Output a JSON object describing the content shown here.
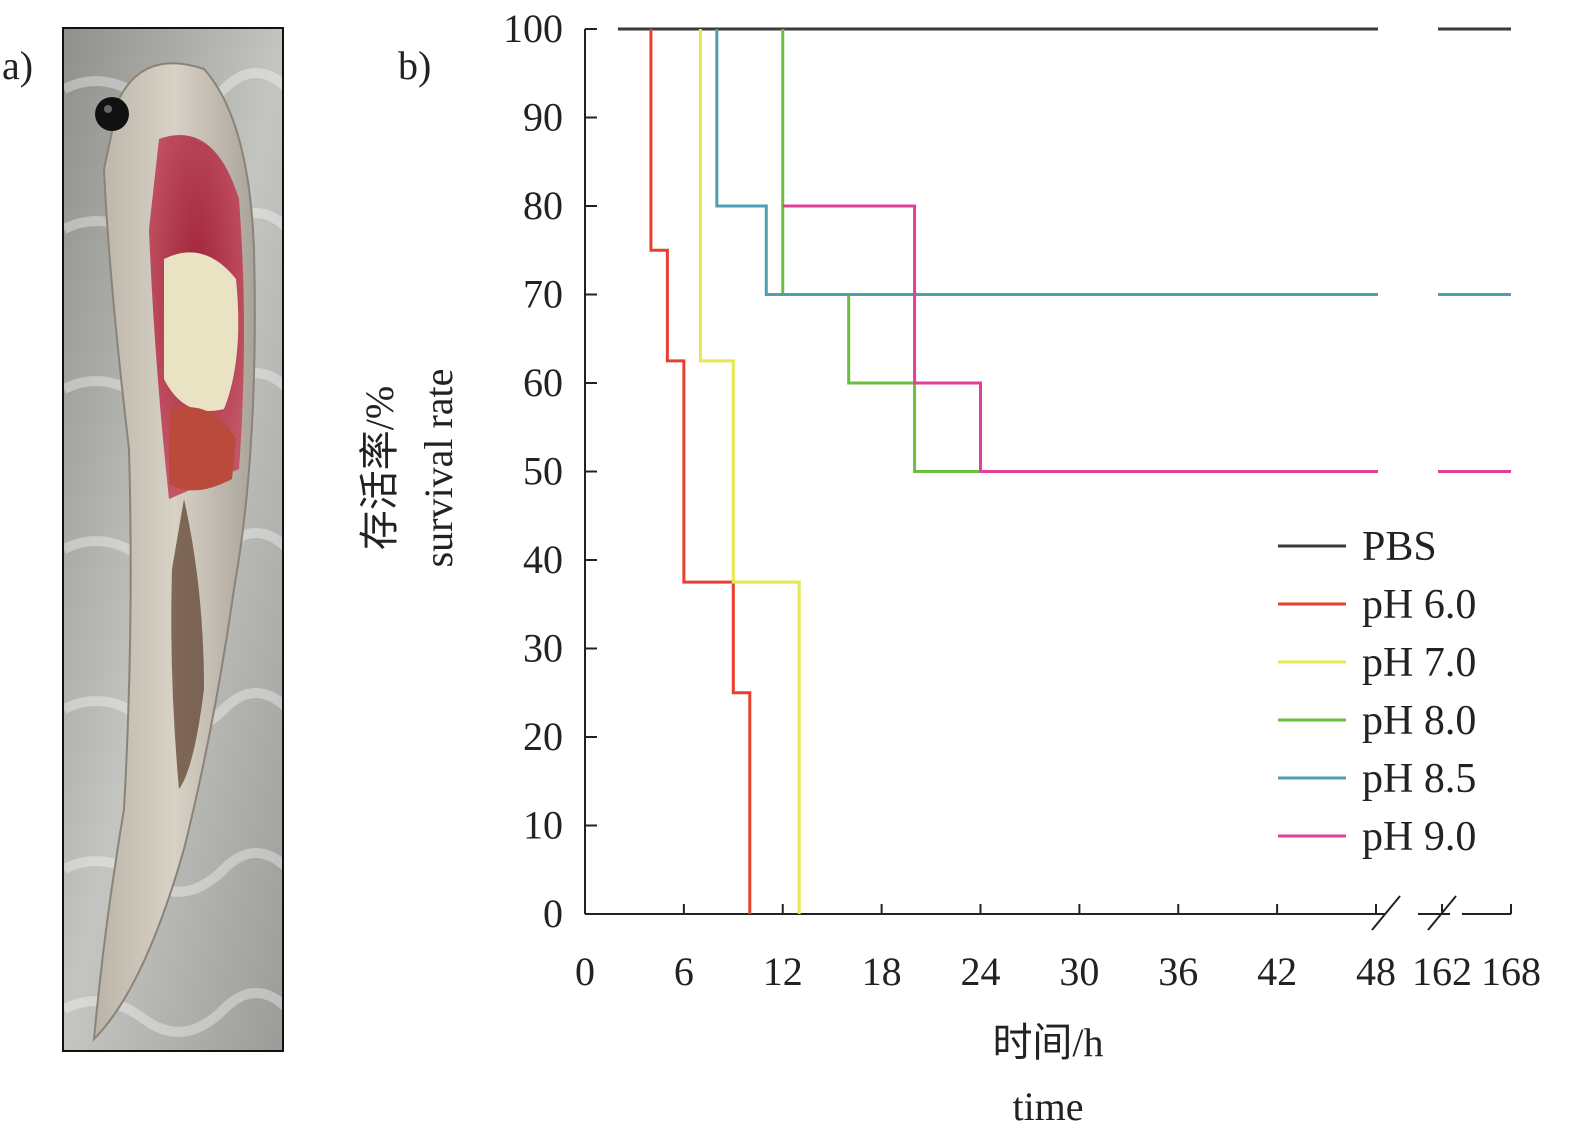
{
  "panels": {
    "a_label": "a)",
    "b_label": "b)"
  },
  "photo": {
    "description_icon": "fish-specimen-photo"
  },
  "colors": {
    "PBS": "#3a3a3a",
    "pH 6.0": "#e8402e",
    "pH 7.0": "#e5e84e",
    "pH 8.0": "#6cbf3c",
    "pH 8.5": "#4f9fb0",
    "pH 9.0": "#e0409a"
  },
  "chart_data": {
    "type": "line",
    "step": true,
    "ylabel_cn": "存活率/%",
    "ylabel_en": "survival rate",
    "xlabel_cn": "时间/h",
    "xlabel_en": "time",
    "ylim": [
      0,
      100
    ],
    "yticks": [
      0,
      10,
      20,
      30,
      40,
      50,
      60,
      70,
      80,
      90,
      100
    ],
    "xlim": [
      0,
      168
    ],
    "xticks_main": [
      0,
      6,
      12,
      18,
      24,
      30,
      36,
      42,
      48
    ],
    "xticks_broken": [
      162,
      168
    ],
    "axis_break": "between 48 and 162",
    "legend_position": "right-middle",
    "series": [
      {
        "name": "PBS",
        "points": [
          [
            2,
            100
          ],
          [
            168,
            100
          ]
        ]
      },
      {
        "name": "pH 6.0",
        "points": [
          [
            4,
            100
          ],
          [
            4,
            75
          ],
          [
            5,
            75
          ],
          [
            5,
            62.5
          ],
          [
            6,
            62.5
          ],
          [
            6,
            37.5
          ],
          [
            9,
            37.5
          ],
          [
            9,
            25
          ],
          [
            10,
            25
          ],
          [
            10,
            0
          ]
        ]
      },
      {
        "name": "pH 7.0",
        "points": [
          [
            7,
            100
          ],
          [
            7,
            62.5
          ],
          [
            9,
            62.5
          ],
          [
            9,
            37.5
          ],
          [
            13,
            37.5
          ],
          [
            13,
            0
          ]
        ]
      },
      {
        "name": "pH 8.0",
        "points": [
          [
            12,
            100
          ],
          [
            12,
            70
          ],
          [
            16,
            70
          ],
          [
            16,
            60
          ],
          [
            20,
            60
          ],
          [
            20,
            50
          ],
          [
            168,
            50
          ]
        ]
      },
      {
        "name": "pH 8.5",
        "points": [
          [
            8,
            100
          ],
          [
            8,
            80
          ],
          [
            11,
            80
          ],
          [
            11,
            70
          ],
          [
            168,
            70
          ]
        ]
      },
      {
        "name": "pH 9.0",
        "points": [
          [
            12,
            80
          ],
          [
            20,
            80
          ],
          [
            20,
            60
          ],
          [
            24,
            60
          ],
          [
            24,
            50
          ],
          [
            168,
            50
          ]
        ]
      }
    ]
  }
}
